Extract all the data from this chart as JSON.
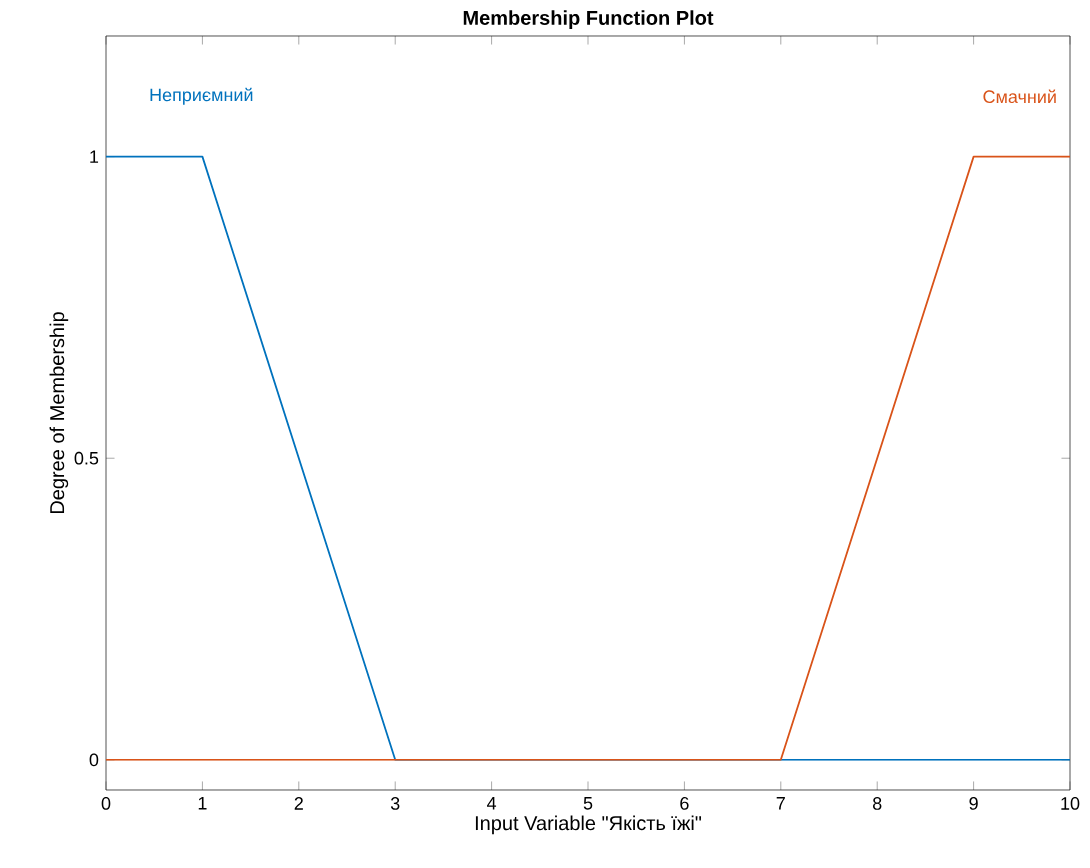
{
  "chart_data": {
    "type": "line",
    "title": "Membership Function Plot",
    "xlabel": "Input Variable \"Якість їжі\"",
    "ylabel": "Degree of Membership",
    "x": [
      0,
      1,
      3,
      7,
      9,
      10
    ],
    "series": [
      {
        "name": "Неприємний",
        "color": "#0072bd",
        "values": [
          1,
          1,
          0,
          0,
          0,
          0
        ]
      },
      {
        "name": "Смачний",
        "color": "#d95319",
        "values": [
          0,
          0,
          0,
          0,
          1,
          1
        ]
      }
    ],
    "xlim": [
      0,
      10
    ],
    "ylim": [
      -0.05,
      1.2
    ],
    "xticks": [
      0,
      1,
      2,
      3,
      4,
      5,
      6,
      7,
      8,
      9,
      10
    ],
    "yticks": [
      0,
      0.5,
      1
    ],
    "grid": false,
    "marker": "none",
    "line_style": "solid"
  }
}
